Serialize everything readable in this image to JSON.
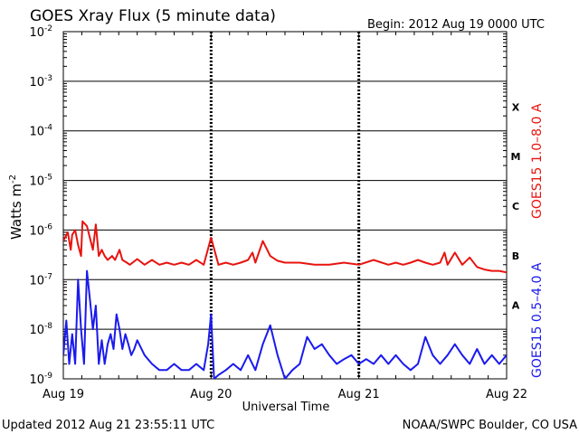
{
  "chart_data": {
    "type": "line",
    "title": "GOES Xray Flux (5 minute data)",
    "begin": "Begin:  2012 Aug 19 0000 UTC",
    "xlabel": "Universal Time",
    "ylabel_base": "Watts m",
    "ylabel_exp": "-2",
    "y_scale": "log",
    "ylim": [
      1e-09,
      0.01
    ],
    "y_ticks": [
      {
        "base": "10",
        "exp": "-2",
        "value": 0.01
      },
      {
        "base": "10",
        "exp": "-3",
        "value": 0.001
      },
      {
        "base": "10",
        "exp": "-4",
        "value": 0.0001
      },
      {
        "base": "10",
        "exp": "-5",
        "value": 1e-05
      },
      {
        "base": "10",
        "exp": "-6",
        "value": 1e-06
      },
      {
        "base": "10",
        "exp": "-7",
        "value": 1e-07
      },
      {
        "base": "10",
        "exp": "-8",
        "value": 1e-08
      },
      {
        "base": "10",
        "exp": "-9",
        "value": 1e-09
      }
    ],
    "x_ticks": [
      "Aug 19",
      "Aug 20",
      "Aug 21",
      "Aug 22"
    ],
    "xlim_days": [
      0,
      3
    ],
    "flare_classes": [
      {
        "label": "X",
        "min": 0.0001
      },
      {
        "label": "M",
        "min": 1e-05
      },
      {
        "label": "C",
        "min": 1e-06
      },
      {
        "label": "B",
        "min": 1e-07
      },
      {
        "label": "A",
        "min": 1e-08
      }
    ],
    "grid": true,
    "series": [
      {
        "name": "GOES15 1.0–8.0 A",
        "color": "#e8130f",
        "x_days": [
          0,
          0.03,
          0.05,
          0.06,
          0.08,
          0.1,
          0.12,
          0.13,
          0.16,
          0.2,
          0.22,
          0.24,
          0.26,
          0.28,
          0.3,
          0.33,
          0.35,
          0.38,
          0.4,
          0.43,
          0.45,
          0.5,
          0.55,
          0.6,
          0.65,
          0.7,
          0.75,
          0.8,
          0.85,
          0.9,
          0.95,
          1.0,
          1.05,
          1.1,
          1.15,
          1.2,
          1.25,
          1.28,
          1.3,
          1.35,
          1.4,
          1.45,
          1.5,
          1.6,
          1.7,
          1.8,
          1.9,
          2.0,
          2.1,
          2.2,
          2.25,
          2.3,
          2.35,
          2.4,
          2.45,
          2.5,
          2.55,
          2.58,
          2.6,
          2.65,
          2.7,
          2.75,
          2.8,
          2.85,
          2.9,
          2.95,
          3.0
        ],
        "values": [
          6e-07,
          9e-07,
          4e-07,
          8e-07,
          1e-06,
          5e-07,
          3e-07,
          1.5e-06,
          1.2e-06,
          4e-07,
          1.3e-06,
          3e-07,
          4e-07,
          3e-07,
          2.5e-07,
          3e-07,
          2.5e-07,
          4e-07,
          2.5e-07,
          2.2e-07,
          2e-07,
          2.6e-07,
          2e-07,
          2.5e-07,
          2e-07,
          2.2e-07,
          2e-07,
          2.2e-07,
          2e-07,
          2.5e-07,
          2e-07,
          7e-07,
          2e-07,
          2.2e-07,
          2e-07,
          2.2e-07,
          2.5e-07,
          3.5e-07,
          2.2e-07,
          6e-07,
          3e-07,
          2.4e-07,
          2.2e-07,
          2.2e-07,
          2e-07,
          2e-07,
          2.2e-07,
          2e-07,
          2.5e-07,
          2e-07,
          2.2e-07,
          2e-07,
          2.2e-07,
          2.5e-07,
          2.2e-07,
          2e-07,
          2.2e-07,
          3.5e-07,
          2e-07,
          3.5e-07,
          2e-07,
          2.8e-07,
          1.8e-07,
          1.6e-07,
          1.5e-07,
          1.5e-07,
          1.4e-07
        ]
      },
      {
        "name": "GOES15 0.5–4.0 A",
        "color": "#1a1aee",
        "x_days": [
          0,
          0.02,
          0.04,
          0.06,
          0.08,
          0.1,
          0.12,
          0.14,
          0.16,
          0.18,
          0.2,
          0.22,
          0.24,
          0.26,
          0.28,
          0.3,
          0.32,
          0.34,
          0.36,
          0.38,
          0.4,
          0.42,
          0.44,
          0.46,
          0.48,
          0.5,
          0.55,
          0.6,
          0.65,
          0.7,
          0.75,
          0.8,
          0.85,
          0.9,
          0.95,
          0.98,
          1.0,
          1.02,
          1.05,
          1.1,
          1.15,
          1.2,
          1.25,
          1.3,
          1.35,
          1.4,
          1.45,
          1.5,
          1.55,
          1.6,
          1.65,
          1.7,
          1.75,
          1.8,
          1.85,
          1.9,
          1.95,
          2.0,
          2.05,
          2.1,
          2.15,
          2.2,
          2.25,
          2.3,
          2.35,
          2.4,
          2.45,
          2.5,
          2.55,
          2.6,
          2.65,
          2.7,
          2.75,
          2.8,
          2.85,
          2.9,
          2.95,
          3.0
        ],
        "values": [
          3e-09,
          1.5e-08,
          2e-09,
          8e-09,
          2e-09,
          1e-07,
          1e-08,
          2e-09,
          1.5e-07,
          4e-08,
          1e-08,
          3e-08,
          2e-09,
          6e-09,
          2e-09,
          5e-09,
          8e-09,
          4e-09,
          2e-08,
          1e-08,
          4e-09,
          8e-09,
          5e-09,
          3e-09,
          4e-09,
          6e-09,
          3e-09,
          2e-09,
          1.5e-09,
          1.5e-09,
          2e-09,
          1.5e-09,
          1.5e-09,
          2e-09,
          1.5e-09,
          5e-09,
          2e-08,
          1e-09,
          1.2e-09,
          1.5e-09,
          2e-09,
          1.5e-09,
          3e-09,
          1.5e-09,
          5e-09,
          1.2e-08,
          3e-09,
          1e-09,
          1.5e-09,
          2e-09,
          7e-09,
          4e-09,
          5e-09,
          3e-09,
          2e-09,
          2.5e-09,
          3e-09,
          2e-09,
          2.5e-09,
          2e-09,
          3e-09,
          2e-09,
          3e-09,
          2e-09,
          1.5e-09,
          2e-09,
          7e-09,
          3e-09,
          2e-09,
          3e-09,
          5e-09,
          3e-09,
          2e-09,
          4e-09,
          2e-09,
          3e-09,
          2e-09,
          3e-09
        ]
      }
    ]
  },
  "footer": {
    "updated": "Updated 2012 Aug 21 23:55:11 UTC",
    "credit": "NOAA/SWPC Boulder, CO USA"
  }
}
